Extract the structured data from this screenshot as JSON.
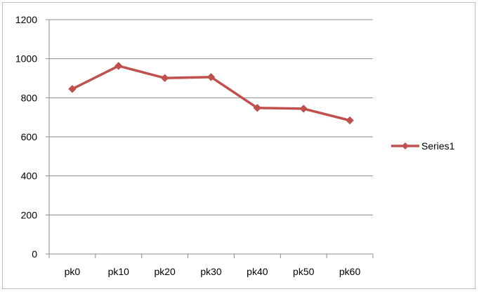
{
  "chart_data": {
    "type": "line",
    "categories": [
      "pk0",
      "pk10",
      "pk20",
      "pk30",
      "pk40",
      "pk50",
      "pk60"
    ],
    "series": [
      {
        "name": "Series1",
        "values": [
          845,
          963,
          901,
          906,
          748,
          744,
          684
        ],
        "color": "#c0504d"
      }
    ],
    "ylim": [
      0,
      1200
    ],
    "yticks": [
      0,
      200,
      400,
      600,
      800,
      1000,
      1200
    ],
    "grid": true,
    "legend": "right",
    "marker": "diamond"
  }
}
